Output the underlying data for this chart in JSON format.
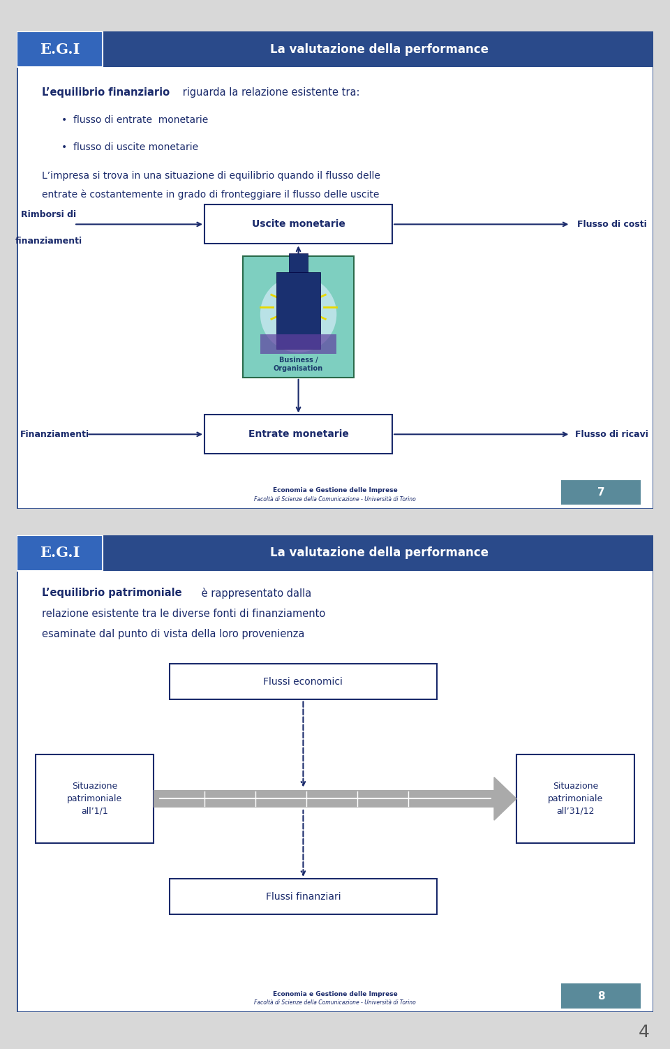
{
  "bg_color": "#d8d8d8",
  "slide1": {
    "border_color": "#2a4a8a",
    "header_bg": "#2a4a8a",
    "header_text": "La valutazione della performance",
    "logo_text": "E.G.I",
    "title_bold": "L’equilibrio finanziario",
    "title_rest": " riguarda la relazione esistente tra:",
    "bullet1": "flusso di entrate  monetarie",
    "bullet2": "flusso di uscite monetarie",
    "body_text1": "L’impresa si trova in una situazione di equilibrio quando il flusso delle",
    "body_text2": "entrate è costantemente in grado di fronteggiare il flusso delle uscite",
    "left_label": "Rimborsi di\nfinanziamenti",
    "center_box1": "Uscite monetarie",
    "right_label1": "Flusso di costi",
    "bottom_left_label": "Finanziamenti",
    "center_box2": "Entrate monetarie",
    "right_label2": "Flusso di ricavi",
    "business_label": "Business /\nOrganisation",
    "footer1": "Economia e Gestione delle Imprese",
    "footer2": "Facoltà di Scienze della Comunicazione - Università di Torino",
    "page_num": "7",
    "text_color": "#1a2a6b",
    "box_border": "#1a2a6b",
    "biz_bg": "#7ecfc0",
    "biz_border": "#2a6a4a"
  },
  "slide2": {
    "border_color": "#2a4a8a",
    "header_bg": "#2a4a8a",
    "header_text": "La valutazione della performance",
    "logo_text": "E.G.I",
    "title_bold": "L’equilibrio patrimoniale",
    "title_rest1": " è rappresentato dalla",
    "title_rest2": "relazione esistente tra le diverse fonti di finanziamento",
    "title_rest3": "esaminate dal punto di vista della loro provenienza",
    "top_box": "Flussi economici",
    "bottom_box": "Flussi finanziari",
    "left_box": "Situazione\npatrimoniale\nall’1/1",
    "right_box": "Situazione\npatrimoniale\nall’31/12",
    "footer1": "Economia e Gestione delle Imprese",
    "footer2": "Facoltà di Scienze della Comunicazione - Università di Torino",
    "page_num": "8",
    "text_color": "#1a2a6b",
    "box_border": "#1a2a6b"
  },
  "page_number": "4"
}
